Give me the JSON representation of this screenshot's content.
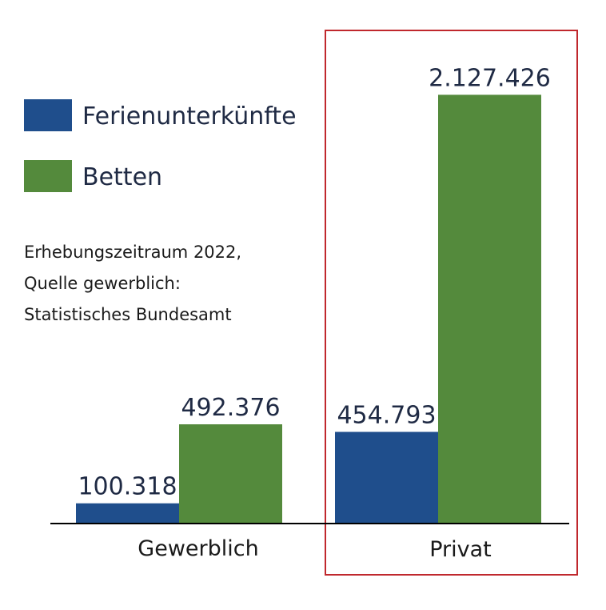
{
  "chart_data": {
    "type": "bar",
    "categories": [
      "Gewerblich",
      "Privat"
    ],
    "series": [
      {
        "name": "Ferienunterkünfte",
        "values": [
          100318,
          454793
        ],
        "labels": [
          "100.318",
          "454.793"
        ],
        "color": "#1f4e8c"
      },
      {
        "name": "Betten",
        "values": [
          492376,
          2127426
        ],
        "labels": [
          "492.376",
          "2.127.426"
        ],
        "color": "#548a3c"
      }
    ],
    "ylim": [
      0,
      2280000
    ],
    "grid": false,
    "legend_position": "top-left",
    "highlighted_category": "Privat",
    "highlight_color": "#c0282d",
    "axis_color": "#000000"
  },
  "note_lines": [
    "Erhebungszeitraum 2022,",
    "Quelle gewerblich:",
    "Statistisches Bundesamt"
  ]
}
